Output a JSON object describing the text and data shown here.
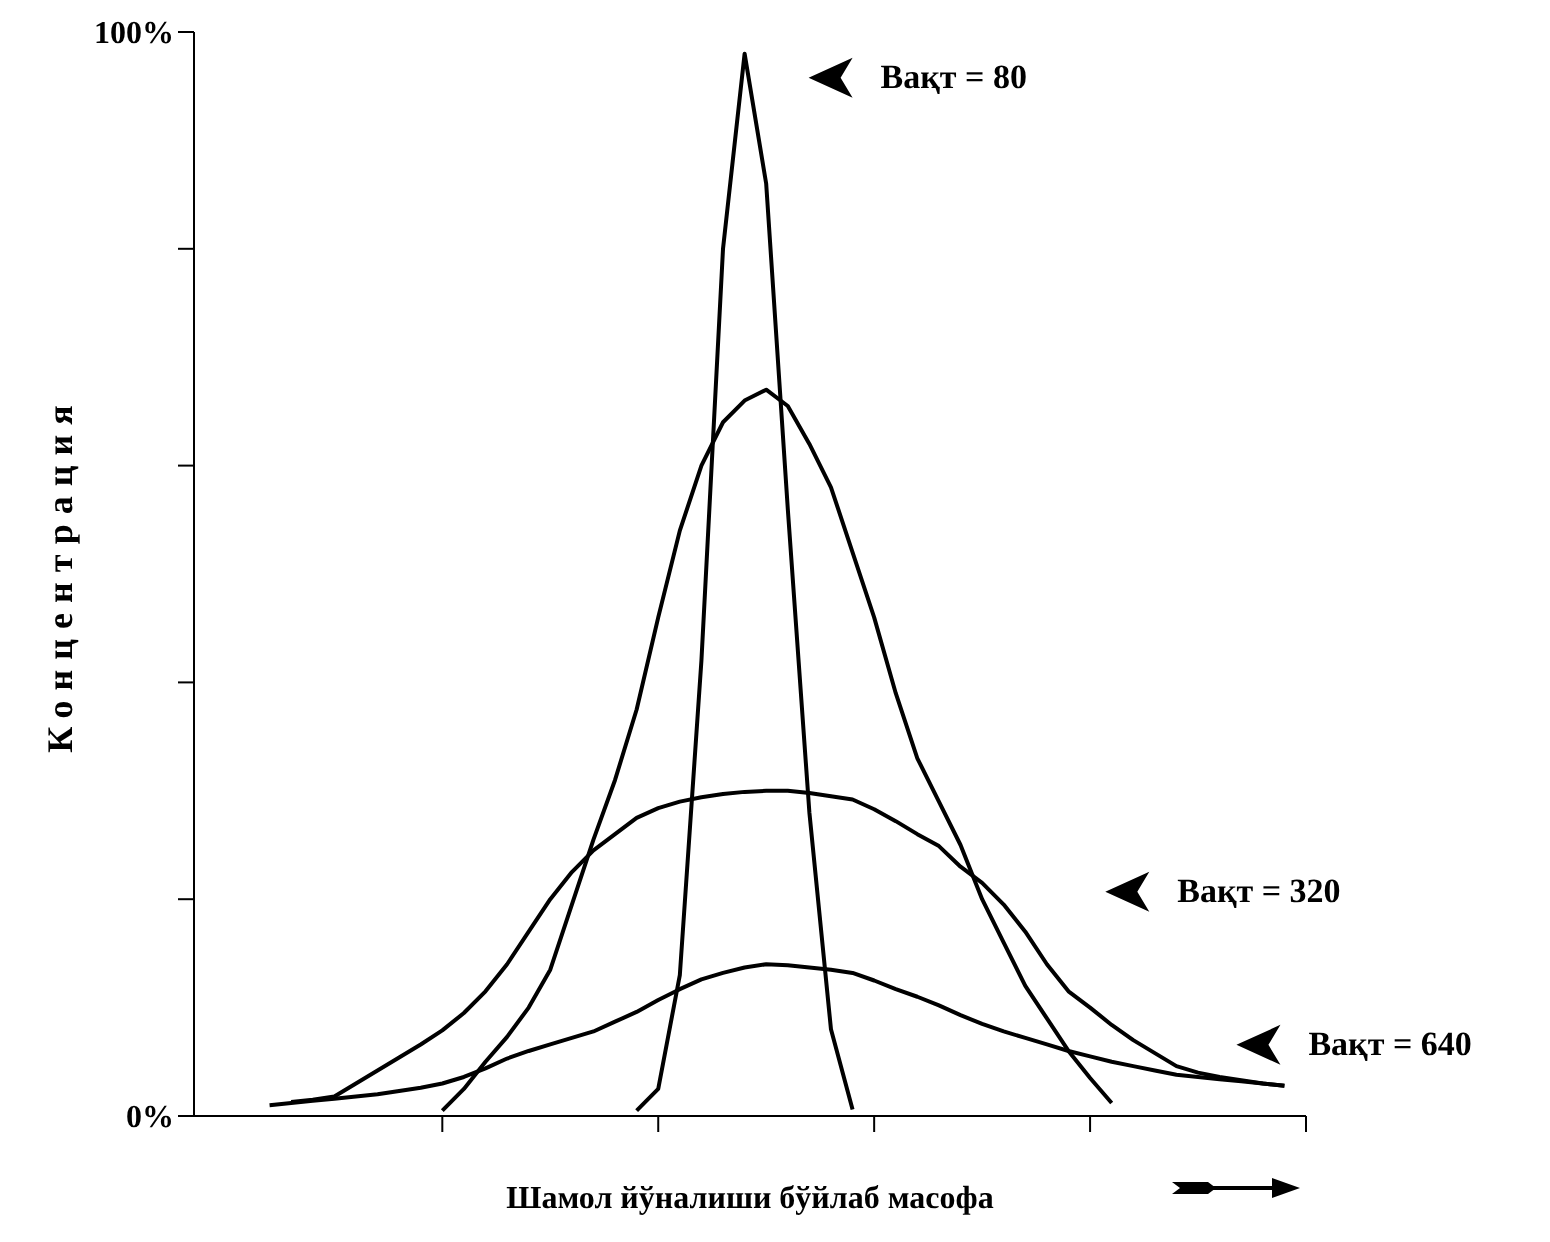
{
  "chart_data": {
    "type": "line",
    "xlabel": "Шамол йўналиши бўйлаб масофа",
    "ylabel": "Концентрация",
    "categories": [
      null,
      null,
      null,
      null,
      null,
      null,
      null,
      null,
      null,
      null,
      null,
      null,
      null,
      null,
      null,
      null,
      null,
      null,
      null,
      null,
      null,
      null,
      null,
      null,
      null,
      null,
      null,
      null,
      null,
      null,
      null,
      null,
      null,
      null,
      null,
      null,
      null,
      null,
      null,
      null,
      null,
      null,
      null,
      null,
      null,
      null,
      null,
      null,
      null,
      null
    ],
    "ylim": [
      0,
      100
    ],
    "yticks": [
      {
        "value": 0,
        "label": "0%"
      },
      {
        "value": 20,
        "label": null
      },
      {
        "value": 40,
        "label": null
      },
      {
        "value": 60,
        "label": null
      },
      {
        "value": 80,
        "label": null
      },
      {
        "value": 100,
        "label": "100%"
      }
    ],
    "tick_labels": "y",
    "legend": "right",
    "series": [
      {
        "name": "Вақт = 80",
        "color": "#000000",
        "values": [
          null,
          null,
          null,
          null,
          null,
          null,
          null,
          null,
          null,
          null,
          null,
          null,
          null,
          null,
          null,
          null,
          null,
          null,
          null,
          0.5,
          2.5,
          13,
          42,
          80,
          98,
          86,
          56,
          28,
          8,
          0.6,
          null,
          null,
          null,
          null,
          null,
          null,
          null,
          null,
          null,
          null,
          null,
          null,
          null,
          null,
          null,
          null,
          null,
          null,
          null,
          null
        ]
      },
      {
        "color": "#000000",
        "values": [
          null,
          null,
          null,
          null,
          null,
          null,
          null,
          null,
          null,
          null,
          0.5,
          2.5,
          5,
          7.3,
          10,
          13.5,
          19.5,
          25.5,
          31,
          37.5,
          46,
          54,
          60,
          64,
          66,
          67,
          65.5,
          62,
          58,
          52,
          46,
          39,
          33,
          29,
          25,
          20,
          16,
          12,
          9,
          6,
          3.5,
          1.2,
          null,
          null,
          null,
          null,
          null,
          null,
          null,
          null
        ]
      },
      {
        "name": "Вақт = 320",
        "color": "#000000",
        "values": [
          null,
          null,
          null,
          1.3,
          1.5,
          1.8,
          3,
          4.2,
          5.4,
          6.6,
          7.9,
          9.5,
          11.5,
          14,
          17,
          20,
          22.5,
          24.5,
          26,
          27.5,
          28.4,
          29,
          29.4,
          29.7,
          29.9,
          30,
          30,
          29.8,
          29.5,
          29.2,
          28.3,
          27.2,
          26,
          24.9,
          23,
          21.5,
          19.5,
          17,
          14,
          11.5,
          10,
          8.4,
          7,
          5.8,
          4.6,
          4,
          3.6,
          3.3,
          3,
          2.8
        ]
      },
      {
        "name": "Вақт = 640",
        "color": "#000000",
        "values": [
          null,
          null,
          1,
          1.2,
          1.4,
          1.6,
          1.8,
          2,
          2.3,
          2.6,
          3,
          3.6,
          4.4,
          5.3,
          6,
          6.6,
          7.2,
          7.8,
          8.7,
          9.6,
          10.7,
          11.7,
          12.6,
          13.2,
          13.7,
          14,
          13.9,
          13.7,
          13.5,
          13.2,
          12.5,
          11.7,
          11,
          10.2,
          9.3,
          8.5,
          7.8,
          7.2,
          6.6,
          6,
          5.5,
          5,
          4.6,
          4.2,
          3.8,
          3.6,
          3.4,
          3.2,
          3,
          2.8
        ]
      }
    ]
  }
}
